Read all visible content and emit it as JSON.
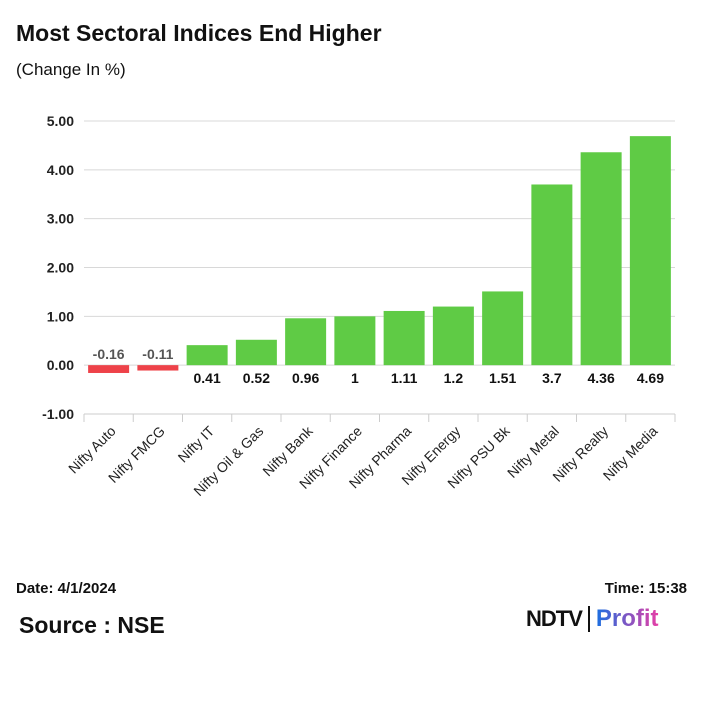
{
  "header": {
    "title": "Most Sectoral Indices End Higher",
    "subtitle": "(Change In %)"
  },
  "footer": {
    "date": "Date: 4/1/2024",
    "time": "Time: 15:38",
    "source": "Source : NSE",
    "logo": "NDTV | Profit"
  },
  "colors": {
    "positive": "#5fcb45",
    "negative": "#ee4249"
  },
  "chart_data": {
    "type": "bar",
    "title": "Most Sectoral Indices End Higher",
    "subtitle": "(Change In %)",
    "categories": [
      "Nifty Auto",
      "Nifty FMCG",
      "Nifty IT",
      "Nifty Oil & Gas",
      "Nifty Bank",
      "Nifty Finance",
      "Nifty Pharma",
      "Nifty Energy",
      "Nifty PSU Bk",
      "Nifty Metal",
      "Nifty Realty",
      "Nifty Media"
    ],
    "values": [
      -0.16,
      -0.11,
      0.41,
      0.52,
      0.96,
      1,
      1.11,
      1.2,
      1.51,
      3.7,
      4.36,
      4.69
    ],
    "data_labels": [
      "-0.16",
      "-0.11",
      "0.41",
      "0.52",
      "0.96",
      "1",
      "1.11",
      "1.2",
      "1.51",
      "3.7",
      "4.36",
      "4.69"
    ],
    "yticks": [
      "-1.00",
      "0.00",
      "1.00",
      "2.00",
      "3.00",
      "4.00",
      "5.00"
    ],
    "ylim": [
      -1,
      5
    ],
    "grid": true,
    "xlabel": "",
    "ylabel": ""
  }
}
